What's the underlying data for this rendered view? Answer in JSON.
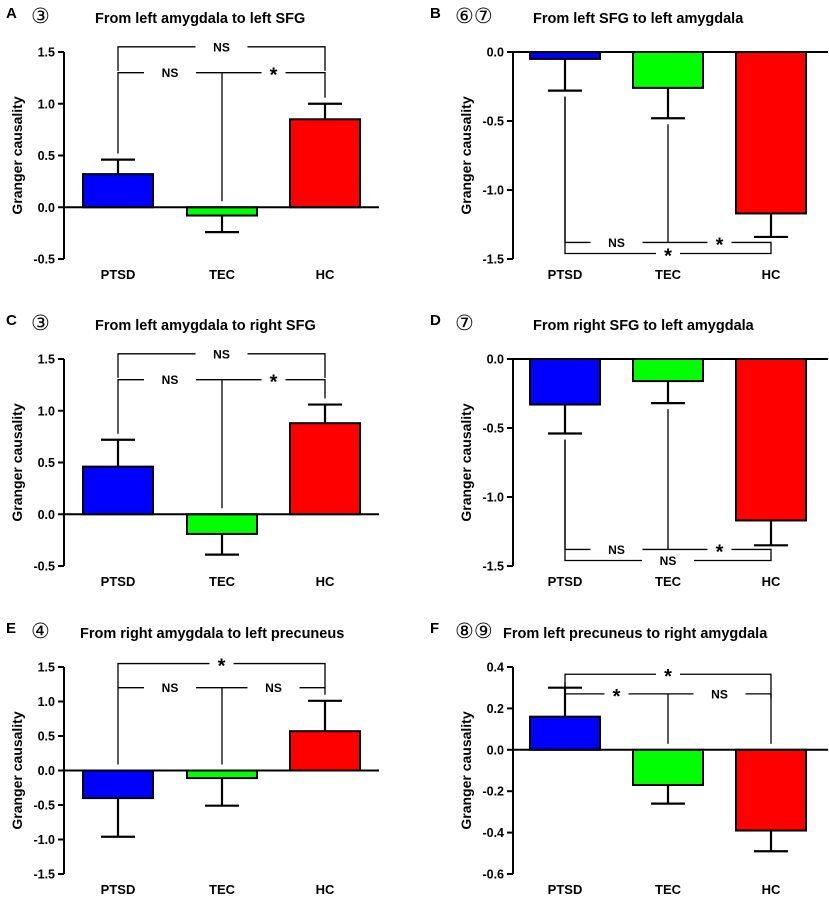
{
  "chart_data": [
    {
      "panel": "A",
      "circled": "③",
      "title": "From left amygdala to left SFG",
      "type": "bar",
      "ylabel": "Granger causality",
      "categories": [
        "PTSD",
        "TEC",
        "HC"
      ],
      "values": [
        0.32,
        -0.08,
        0.85
      ],
      "errors": [
        0.14,
        0.16,
        0.15
      ],
      "colors": [
        "#0000ff",
        "#00ff00",
        "#ff0000"
      ],
      "ylim": [
        -0.5,
        1.5
      ],
      "ticks": [
        "-0.5",
        "0.0",
        "0.5",
        "1.0",
        "1.5"
      ],
      "brackets": [
        {
          "from": 0,
          "to": 2,
          "label": "NS",
          "y": 1.55
        },
        {
          "from": 0,
          "to": 2,
          "label": "NS",
          "mid": 1,
          "label2": "*",
          "y": 1.3
        }
      ]
    },
    {
      "panel": "B",
      "circled": "⑥⑦",
      "title": "From left SFG to left amygdala",
      "type": "bar",
      "ylabel": "Granger causality",
      "categories": [
        "PTSD",
        "TEC",
        "HC"
      ],
      "values": [
        -0.05,
        -0.26,
        -1.17
      ],
      "errors": [
        0.23,
        0.22,
        0.17
      ],
      "colors": [
        "#0000ff",
        "#00ff00",
        "#ff0000"
      ],
      "ylim": [
        -1.5,
        0.0
      ],
      "ticks": [
        "-1.5",
        "-1.0",
        "-0.5",
        "0.0"
      ],
      "brackets": [
        {
          "from": 0,
          "to": 2,
          "label": "NS",
          "mid": 1,
          "label2": "*",
          "y": -1.38
        },
        {
          "from": 0,
          "to": 2,
          "label": "*",
          "y": -1.46
        }
      ]
    },
    {
      "panel": "C",
      "circled": "③",
      "title": "From left amygdala to right SFG",
      "type": "bar",
      "ylabel": "Granger causality",
      "categories": [
        "PTSD",
        "TEC",
        "HC"
      ],
      "values": [
        0.46,
        -0.19,
        0.88
      ],
      "errors": [
        0.26,
        0.2,
        0.18
      ],
      "colors": [
        "#0000ff",
        "#00ff00",
        "#ff0000"
      ],
      "ylim": [
        -0.5,
        1.5
      ],
      "ticks": [
        "-0.5",
        "0.0",
        "0.5",
        "1.0",
        "1.5"
      ],
      "brackets": [
        {
          "from": 0,
          "to": 2,
          "label": "NS",
          "y": 1.55
        },
        {
          "from": 0,
          "to": 2,
          "label": "NS",
          "mid": 1,
          "label2": "*",
          "y": 1.3
        }
      ]
    },
    {
      "panel": "D",
      "circled": "⑦",
      "title": "From right SFG to left amygdala",
      "type": "bar",
      "ylabel": "Granger causality",
      "categories": [
        "PTSD",
        "TEC",
        "HC"
      ],
      "values": [
        -0.33,
        -0.16,
        -1.17
      ],
      "errors": [
        0.21,
        0.16,
        0.18
      ],
      "colors": [
        "#0000ff",
        "#00ff00",
        "#ff0000"
      ],
      "ylim": [
        -1.5,
        0.0
      ],
      "ticks": [
        "-1.5",
        "-1.0",
        "-0.5",
        "0.0"
      ],
      "brackets": [
        {
          "from": 0,
          "to": 2,
          "label": "NS",
          "mid": 1,
          "label2": "*",
          "y": -1.38
        },
        {
          "from": 0,
          "to": 2,
          "label": "NS",
          "y": -1.46
        }
      ]
    },
    {
      "panel": "E",
      "circled": "④",
      "title": "From right amygdala to left precuneus",
      "type": "bar",
      "ylabel": "Granger causality",
      "categories": [
        "PTSD",
        "TEC",
        "HC"
      ],
      "values": [
        -0.4,
        -0.11,
        0.57
      ],
      "errors": [
        0.56,
        0.4,
        0.44
      ],
      "colors": [
        "#0000ff",
        "#00ff00",
        "#ff0000"
      ],
      "ylim": [
        -1.5,
        1.5
      ],
      "ticks": [
        "-1.5",
        "-1.0",
        "-0.5",
        "0.0",
        "0.5",
        "1.0",
        "1.5"
      ],
      "brackets": [
        {
          "from": 0,
          "to": 2,
          "label": "*",
          "y": 1.55
        },
        {
          "from": 0,
          "to": 2,
          "label": "NS",
          "mid": 1,
          "label2": "NS",
          "y": 1.2
        }
      ]
    },
    {
      "panel": "F",
      "circled": "⑧⑨",
      "title": "From left precuneus to right amygdala",
      "type": "bar",
      "ylabel": "Granger causality",
      "categories": [
        "PTSD",
        "TEC",
        "HC"
      ],
      "values": [
        0.16,
        -0.17,
        -0.39
      ],
      "errors": [
        0.14,
        0.09,
        0.1
      ],
      "colors": [
        "#0000ff",
        "#00ff00",
        "#ff0000"
      ],
      "ylim": [
        -0.6,
        0.4
      ],
      "ticks": [
        "-0.6",
        "-0.4",
        "-0.2",
        "0.0",
        "0.2",
        "0.4"
      ],
      "brackets": [
        {
          "from": 0,
          "to": 2,
          "label": "*",
          "y": 0.365
        },
        {
          "from": 0,
          "to": 2,
          "label": "*",
          "mid": 1,
          "label2": "NS",
          "y": 0.27
        }
      ]
    }
  ]
}
